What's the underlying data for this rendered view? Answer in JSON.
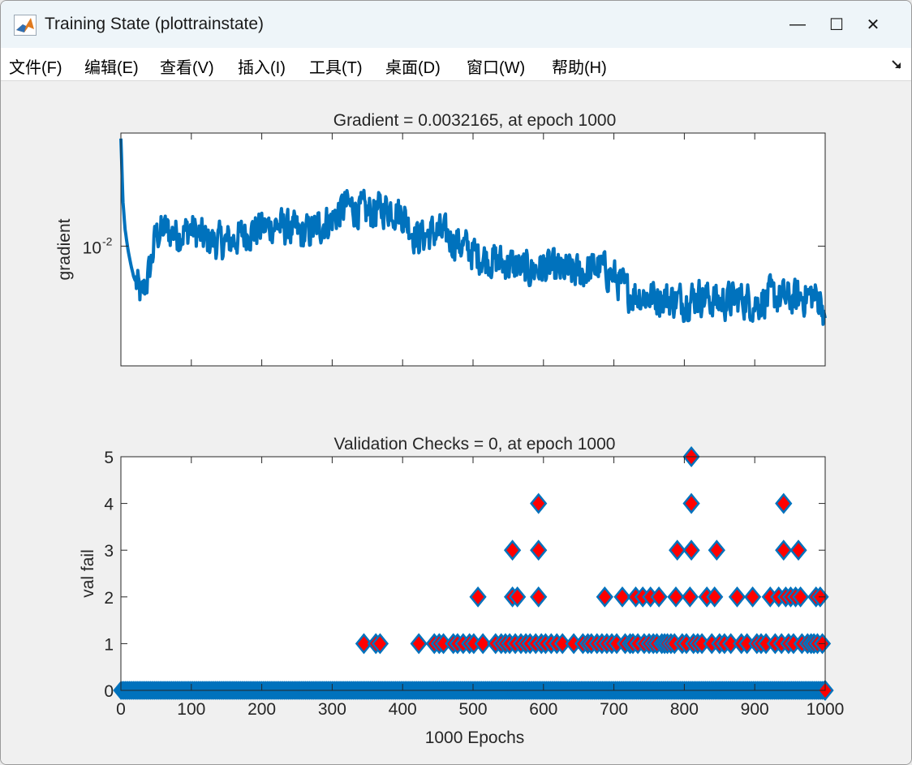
{
  "window": {
    "title": "Training State (plottrainstate)",
    "minimize_glyph": "—",
    "maximize_glyph": "☐",
    "close_glyph": "✕"
  },
  "menu": {
    "items": [
      "文件(F)",
      "编辑(E)",
      "查看(V)",
      "插入(I)",
      "工具(T)",
      "桌面(D)",
      "窗口(W)",
      "帮助(H)"
    ]
  },
  "colors": {
    "line": "#0072bd",
    "marker_face": "#ff0000",
    "marker_edge": "#0072bd",
    "axes_bg": "#ffffff",
    "figure_bg": "#f0f0f0"
  },
  "chart_data": [
    {
      "type": "line",
      "title": "Gradient = 0.0032165, at epoch 1000",
      "xlabel": "",
      "ylabel": "gradient",
      "yscale": "log",
      "xlim": [
        0,
        1000
      ],
      "ylim": [
        0.0015,
        0.06
      ],
      "yticks": [
        0.01
      ],
      "ytick_labels": [
        {
          "base": "10",
          "exp": "-2"
        }
      ],
      "xticks": [
        0,
        100,
        200,
        300,
        400,
        500,
        600,
        700,
        800,
        900,
        1000
      ],
      "x": [
        0,
        3,
        6,
        10,
        14,
        18,
        22,
        26,
        30,
        40,
        50,
        60,
        80,
        100,
        120,
        150,
        180,
        220,
        260,
        300,
        320,
        350,
        380,
        400,
        420,
        450,
        480,
        500,
        520,
        550,
        580,
        600,
        620,
        650,
        680,
        700,
        720,
        750,
        780,
        800,
        820,
        850,
        880,
        900,
        920,
        950,
        980,
        995,
        1000
      ],
      "y": [
        0.055,
        0.02,
        0.013,
        0.0095,
        0.0075,
        0.0062,
        0.0055,
        0.0049,
        0.0045,
        0.0065,
        0.012,
        0.013,
        0.012,
        0.013,
        0.011,
        0.0105,
        0.0125,
        0.014,
        0.012,
        0.0155,
        0.019,
        0.017,
        0.0185,
        0.0165,
        0.0115,
        0.0125,
        0.0105,
        0.009,
        0.0082,
        0.0075,
        0.0068,
        0.0072,
        0.0068,
        0.0065,
        0.0072,
        0.0062,
        0.0048,
        0.0045,
        0.0043,
        0.0042,
        0.0046,
        0.0041,
        0.0044,
        0.004,
        0.0045,
        0.0043,
        0.0046,
        0.0042,
        0.0032
      ],
      "noise_amplitude": 0.18
    },
    {
      "type": "scatter",
      "title": "Validation Checks = 0, at epoch 1000",
      "xlabel": "1000 Epochs",
      "ylabel": "val fail",
      "xlim": [
        0,
        1000
      ],
      "ylim": [
        0,
        5
      ],
      "yticks": [
        0,
        1,
        2,
        3,
        4,
        5
      ],
      "xticks": [
        0,
        100,
        200,
        300,
        400,
        500,
        600,
        700,
        800,
        900,
        1000
      ],
      "marker": "diamond",
      "baseline_value": 0,
      "points": [
        [
          345,
          1
        ],
        [
          362,
          1
        ],
        [
          368,
          1
        ],
        [
          423,
          1
        ],
        [
          445,
          1
        ],
        [
          452,
          1
        ],
        [
          458,
          1
        ],
        [
          472,
          1
        ],
        [
          478,
          1
        ],
        [
          486,
          1
        ],
        [
          495,
          1
        ],
        [
          501,
          1
        ],
        [
          507,
          2
        ],
        [
          514,
          1
        ],
        [
          532,
          1
        ],
        [
          540,
          1
        ],
        [
          546,
          1
        ],
        [
          552,
          1
        ],
        [
          556,
          2
        ],
        [
          556,
          3
        ],
        [
          560,
          1
        ],
        [
          563,
          2
        ],
        [
          568,
          1
        ],
        [
          575,
          1
        ],
        [
          581,
          1
        ],
        [
          589,
          1
        ],
        [
          593,
          2
        ],
        [
          593,
          3
        ],
        [
          593,
          4
        ],
        [
          597,
          1
        ],
        [
          603,
          1
        ],
        [
          611,
          1
        ],
        [
          619,
          1
        ],
        [
          627,
          1
        ],
        [
          643,
          1
        ],
        [
          656,
          1
        ],
        [
          663,
          1
        ],
        [
          668,
          1
        ],
        [
          676,
          1
        ],
        [
          683,
          1
        ],
        [
          687,
          2
        ],
        [
          690,
          1
        ],
        [
          697,
          1
        ],
        [
          704,
          1
        ],
        [
          712,
          2
        ],
        [
          716,
          1
        ],
        [
          723,
          1
        ],
        [
          727,
          1
        ],
        [
          731,
          2
        ],
        [
          734,
          1
        ],
        [
          741,
          2
        ],
        [
          743,
          1
        ],
        [
          750,
          1
        ],
        [
          752,
          2
        ],
        [
          756,
          1
        ],
        [
          761,
          1
        ],
        [
          764,
          2
        ],
        [
          768,
          1
        ],
        [
          772,
          1
        ],
        [
          776,
          1
        ],
        [
          781,
          1
        ],
        [
          786,
          1
        ],
        [
          788,
          2
        ],
        [
          790,
          3
        ],
        [
          797,
          1
        ],
        [
          803,
          1
        ],
        [
          808,
          2
        ],
        [
          810,
          3
        ],
        [
          810,
          4
        ],
        [
          810,
          5
        ],
        [
          813,
          1
        ],
        [
          819,
          1
        ],
        [
          825,
          1
        ],
        [
          832,
          2
        ],
        [
          839,
          1
        ],
        [
          843,
          2
        ],
        [
          846,
          3
        ],
        [
          850,
          1
        ],
        [
          857,
          1
        ],
        [
          866,
          1
        ],
        [
          875,
          2
        ],
        [
          881,
          1
        ],
        [
          889,
          1
        ],
        [
          897,
          2
        ],
        [
          903,
          1
        ],
        [
          909,
          1
        ],
        [
          916,
          1
        ],
        [
          922,
          2
        ],
        [
          929,
          1
        ],
        [
          934,
          2
        ],
        [
          938,
          1
        ],
        [
          941,
          3
        ],
        [
          941,
          4
        ],
        [
          944,
          2
        ],
        [
          948,
          1
        ],
        [
          951,
          2
        ],
        [
          955,
          1
        ],
        [
          958,
          2
        ],
        [
          962,
          3
        ],
        [
          965,
          2
        ],
        [
          967,
          1
        ],
        [
          975,
          1
        ],
        [
          980,
          1
        ],
        [
          984,
          1
        ],
        [
          987,
          2
        ],
        [
          989,
          1
        ],
        [
          993,
          2
        ],
        [
          996,
          1
        ],
        [
          1000,
          0
        ]
      ]
    }
  ]
}
